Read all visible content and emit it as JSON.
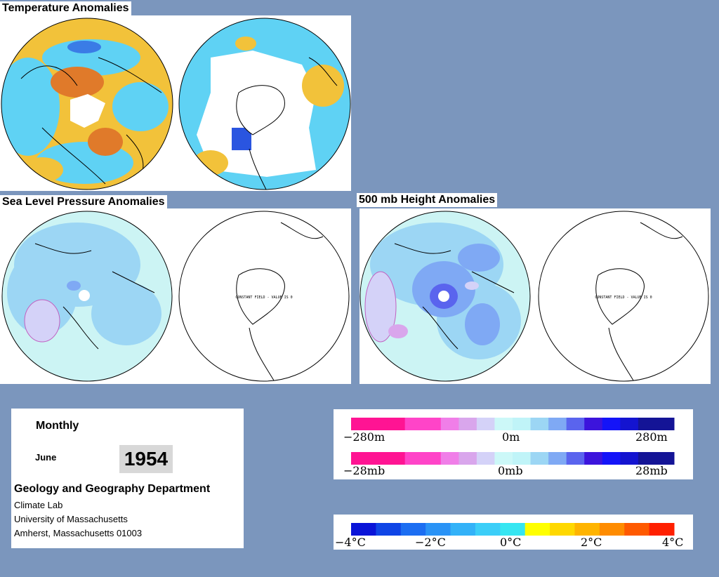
{
  "titles": {
    "temperature": "Temperature Anomalies",
    "slp": "Sea Level Pressure Anomalies",
    "height": "500 mb Height Anomalies"
  },
  "map_notes": {
    "slp_south": "CONSTANT FIELD - VALUE IS 0",
    "height_south": "CONSTANT FIELD - VALUE IS 0"
  },
  "info": {
    "period": "Monthly",
    "month": "June",
    "year": "1954",
    "department": "Geology and Geography Department",
    "lab": "Climate Lab",
    "university": "University of Massachusetts",
    "address": "Amherst, Massachusetts 01003"
  },
  "legends": {
    "height_scale": {
      "ticks": [
        "−280m",
        "0m",
        "280m"
      ],
      "colors": [
        "#ff1493",
        "#ff1493",
        "#ff1493",
        "#ff44c8",
        "#ff44c8",
        "#f07ee8",
        "#d9a6ec",
        "#d4d2f8",
        "#ccf8f8",
        "#c0f4f8",
        "#9cd6f4",
        "#7fa9f4",
        "#5a64ee",
        "#3c14dc",
        "#1414f8",
        "#1414d0",
        "#141496",
        "#141496"
      ]
    },
    "pressure_scale": {
      "ticks": [
        "−28mb",
        "0mb",
        "28mb"
      ]
    },
    "temperature_scale": {
      "ticks": [
        "−4°C",
        "−2°C",
        "0°C",
        "2°C",
        "4°C"
      ],
      "colors": [
        "#0a14d8",
        "#0f45e6",
        "#1c6ef2",
        "#2a93f6",
        "#33b2f8",
        "#3ccef8",
        "#36e6f2",
        "#ffff00",
        "#ffd800",
        "#ffb400",
        "#ff8c00",
        "#ff5a00",
        "#ff2000"
      ]
    }
  }
}
